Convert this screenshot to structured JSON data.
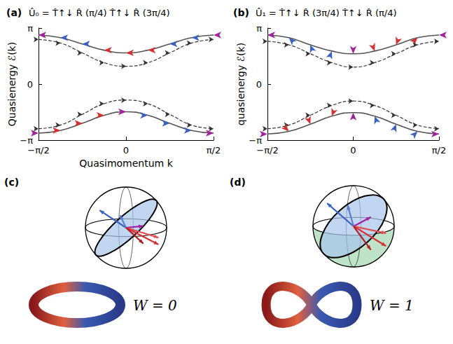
{
  "chart_data": [
    {
      "type": "line",
      "panel_label": "(a)",
      "title": "Û₀ = T̂↑↓ R̂ (π/4) T̂↑↓ R̂ (3π/4)",
      "xlabel": "Quasimomentum k",
      "ylabel": "Quasienergy ℰ(k)",
      "xlim": [
        -1.5708,
        1.5708
      ],
      "ylim": [
        -3.1416,
        3.1416
      ],
      "xticks": [
        {
          "value": -1.5708,
          "label": "−π/2"
        },
        0,
        {
          "value": 1.5708,
          "label": "π/2"
        }
      ],
      "yticks": [
        {
          "value": -3.1416,
          "label": "−π"
        },
        0,
        {
          "value": 3.1416,
          "label": "π"
        }
      ],
      "x": [
        -1.5708,
        -1.1781,
        -0.7854,
        -0.3927,
        0,
        0.3927,
        0.7854,
        1.1781,
        1.5708
      ],
      "series": [
        {
          "color": "#555555",
          "line_style": "solid",
          "marker": "arrow",
          "values": [
            2.75,
            2.6,
            2.25,
            1.9,
            1.75,
            1.9,
            2.25,
            2.6,
            2.75
          ],
          "colors": [
            "#a020a0",
            "#3a62c4",
            "#3a62c4",
            "#d63030",
            "#d63030",
            "#d63030",
            "#3a62c4",
            "#3a62c4",
            "#a020a0"
          ]
        },
        {
          "color": "#333333",
          "line_style": "dashed",
          "marker": "arrow",
          "values": [
            2.5,
            2.3,
            1.75,
            1.2,
            1.0,
            1.2,
            1.75,
            2.3,
            2.5
          ]
        },
        {
          "color": "#333333",
          "line_style": "dashed",
          "marker": "arrow",
          "values": [
            -2.5,
            -2.3,
            -1.7,
            -1.1,
            -0.9,
            -1.1,
            -1.7,
            -2.3,
            -2.5
          ]
        },
        {
          "color": "#555555",
          "line_style": "solid",
          "marker": "arrow",
          "values": [
            -2.75,
            -2.6,
            -2.2,
            -1.75,
            -1.55,
            -1.75,
            -2.2,
            -2.6,
            -2.75
          ],
          "colors": [
            "#a020a0",
            "#d63030",
            "#d63030",
            "#d63030",
            "#a020a0",
            "#3a62c4",
            "#3a62c4",
            "#3a62c4",
            "#a020a0"
          ]
        }
      ]
    },
    {
      "type": "line",
      "panel_label": "(b)",
      "title": "Û₁ = T̂↑↓ R̂ (3π/4) T̂↑↓ R̂ (π/4)",
      "ylabel": "quasienergy ℰ(k)",
      "xlim": [
        -1.5708,
        1.5708
      ],
      "ylim": [
        -3.1416,
        3.1416
      ],
      "xticks": [
        {
          "value": -1.5708,
          "label": "−π/2"
        },
        0,
        {
          "value": 1.5708,
          "label": "π/2"
        }
      ],
      "yticks": [
        {
          "value": -3.1416,
          "label": "−π"
        },
        0,
        {
          "value": 3.1416,
          "label": "π"
        }
      ],
      "x": [
        -1.5708,
        -1.1781,
        -0.7854,
        -0.3927,
        0,
        0.3927,
        0.7854,
        1.1781,
        1.5708
      ],
      "series": [
        {
          "color": "#555555",
          "line_style": "solid",
          "marker": "arrow",
          "values": [
            2.75,
            2.6,
            2.2,
            1.85,
            1.7,
            1.85,
            2.2,
            2.6,
            2.75
          ],
          "colors": [
            "#a020a0",
            "#3a62c4",
            "#3a62c4",
            "#3a62c4",
            "#a020a0",
            "#d63030",
            "#d63030",
            "#d63030",
            "#a020a0"
          ]
        },
        {
          "color": "#333333",
          "line_style": "dashed",
          "marker": "arrow",
          "values": [
            2.4,
            2.2,
            1.7,
            1.2,
            0.95,
            1.2,
            1.7,
            2.2,
            2.4
          ]
        },
        {
          "color": "#333333",
          "line_style": "dashed",
          "marker": "arrow",
          "values": [
            -2.5,
            -2.3,
            -1.75,
            -1.2,
            -0.95,
            -1.2,
            -1.75,
            -2.3,
            -2.5
          ]
        },
        {
          "color": "#555555",
          "line_style": "solid",
          "marker": "arrow",
          "values": [
            -2.8,
            -2.65,
            -2.25,
            -1.8,
            -1.6,
            -1.8,
            -2.25,
            -2.65,
            -2.8
          ],
          "colors": [
            "#a020a0",
            "#d63030",
            "#d63030",
            "#d63030",
            "#a020a0",
            "#3a62c4",
            "#3a62c4",
            "#3a62c4",
            "#a020a0"
          ]
        }
      ]
    }
  ],
  "diagrams": [
    {
      "panel_label": "(c)",
      "text": "W = 0"
    },
    {
      "panel_label": "(d)",
      "text": "W = 1"
    }
  ]
}
